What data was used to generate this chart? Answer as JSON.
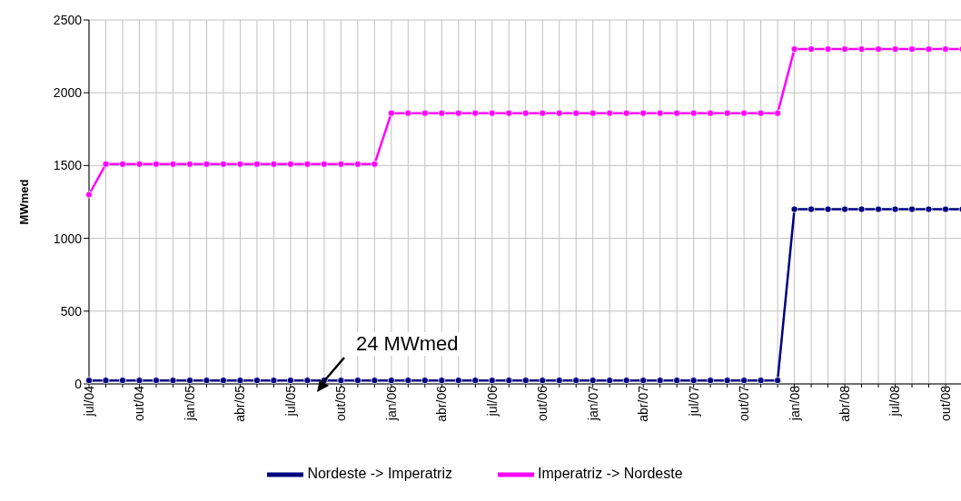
{
  "chart_data": {
    "type": "line",
    "ylabel": "MWmed",
    "categories": [
      "jul/04",
      null,
      null,
      "out/04",
      null,
      null,
      "jan/05",
      null,
      null,
      "abr/05",
      null,
      null,
      "jul/05",
      null,
      null,
      "out/05",
      null,
      null,
      "jan/06",
      null,
      null,
      "abr/06",
      null,
      null,
      "jul/06",
      null,
      null,
      "out/06",
      null,
      null,
      "jan/07",
      null,
      null,
      "abr/07",
      null,
      null,
      "jul/07",
      null,
      null,
      "out/07",
      null,
      null,
      "jan/08",
      null,
      null,
      "abr/08",
      null,
      null,
      "jul/08",
      null,
      null,
      "out/08",
      null,
      null
    ],
    "series": [
      {
        "name": "Nordeste -> Imperatriz",
        "color": "#000080",
        "values": [
          24,
          24,
          24,
          24,
          24,
          24,
          24,
          24,
          24,
          24,
          24,
          24,
          24,
          24,
          24,
          24,
          24,
          24,
          24,
          24,
          24,
          24,
          24,
          24,
          24,
          24,
          24,
          24,
          24,
          24,
          24,
          24,
          24,
          24,
          24,
          24,
          24,
          24,
          24,
          24,
          24,
          24,
          1200,
          1200,
          1200,
          1200,
          1200,
          1200,
          1200,
          1200,
          1200,
          1200,
          1200,
          1200
        ]
      },
      {
        "name": "Imperatriz -> Nordeste",
        "color": "#ff00ff",
        "values": [
          1300,
          1510,
          1510,
          1510,
          1510,
          1510,
          1510,
          1510,
          1510,
          1510,
          1510,
          1510,
          1510,
          1510,
          1510,
          1510,
          1510,
          1510,
          1860,
          1860,
          1860,
          1860,
          1860,
          1860,
          1860,
          1860,
          1860,
          1860,
          1860,
          1860,
          1860,
          1860,
          1860,
          1860,
          1860,
          1860,
          1860,
          1860,
          1860,
          1860,
          1860,
          1860,
          2300,
          2300,
          2300,
          2300,
          2300,
          2300,
          2300,
          2300,
          2300,
          2300,
          2300,
          2300
        ]
      }
    ],
    "ylim": [
      0,
      2500
    ],
    "yticks": [
      0,
      500,
      1000,
      1500,
      2000,
      2500
    ],
    "grid": true,
    "legend": "bottom",
    "marker": "circle",
    "line_style": "solid",
    "annotations": [
      "24 MWmed"
    ]
  }
}
